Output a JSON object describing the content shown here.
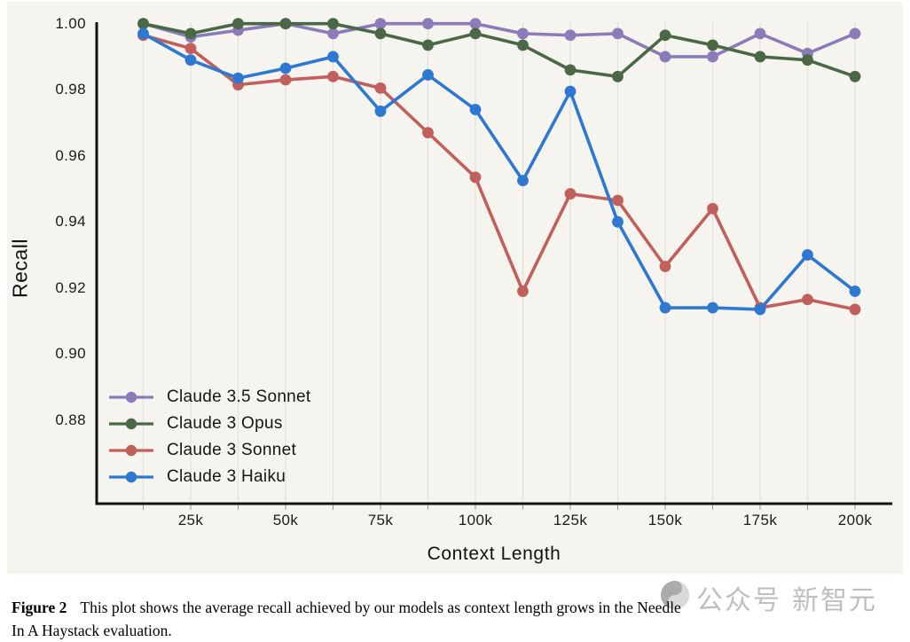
{
  "figure": {
    "label": "Figure 2",
    "caption_line1": "This plot shows the average recall achieved by our models as context length grows in the Needle",
    "caption_line2": "In A Haystack evaluation."
  },
  "watermark": {
    "logo": "gray-circle-logo",
    "text1": "公众号",
    "text2": "新智元"
  },
  "chart_data": {
    "type": "line",
    "title": "",
    "xlabel": "Context Length",
    "ylabel": "Recall",
    "x": [
      12500,
      25000,
      37500,
      50000,
      62500,
      75000,
      87500,
      100000,
      112500,
      125000,
      137500,
      150000,
      162500,
      175000,
      187500,
      200000
    ],
    "x_tick_values": [
      25000,
      50000,
      75000,
      100000,
      125000,
      150000,
      175000,
      200000
    ],
    "x_tick_labels": [
      "25k",
      "50k",
      "75k",
      "100k",
      "125k",
      "150k",
      "175k",
      "200k"
    ],
    "y_ticks": [
      "1.00",
      "0.98",
      "0.96",
      "0.94",
      "0.92",
      "0.90",
      "0.88"
    ],
    "y_tick_values": [
      1.0,
      0.98,
      0.96,
      0.94,
      0.92,
      0.9,
      0.88
    ],
    "ylim": [
      0.855,
      1.0005
    ],
    "grid": "vertical-only",
    "legend_position": "lower-left",
    "series": [
      {
        "name": "Claude 3.5 Sonnet",
        "color": "#8b7cb9",
        "values": [
          1.0,
          0.996,
          0.998,
          1.0,
          0.997,
          1.0,
          1.0,
          1.0,
          0.997,
          0.9965,
          0.997,
          0.99,
          0.99,
          0.997,
          0.991,
          0.997
        ]
      },
      {
        "name": "Claude 3 Opus",
        "color": "#4a6845",
        "values": [
          1.0,
          0.997,
          1.0,
          1.0,
          1.0,
          0.997,
          0.9935,
          0.997,
          0.9935,
          0.986,
          0.984,
          0.9965,
          0.9935,
          0.99,
          0.989,
          0.984
        ]
      },
      {
        "name": "Claude 3 Sonnet",
        "color": "#c05f5b",
        "values": [
          0.9965,
          0.9925,
          0.9815,
          0.983,
          0.984,
          0.9805,
          0.967,
          0.9535,
          0.919,
          0.9485,
          0.9465,
          0.9265,
          0.944,
          0.914,
          0.9165,
          0.9135
        ]
      },
      {
        "name": "Claude 3 Haiku",
        "color": "#2e78d2",
        "values": [
          0.997,
          0.989,
          0.9835,
          0.9865,
          0.99,
          0.9735,
          0.9845,
          0.974,
          0.9525,
          0.9795,
          0.94,
          0.914,
          0.914,
          0.9135,
          0.93,
          0.919
        ]
      }
    ],
    "colors": {
      "panel_bg": "#f5f4ee",
      "grid": "#e3e1d8",
      "axis": "#111111",
      "tick_text": "#1b1b1b"
    }
  }
}
